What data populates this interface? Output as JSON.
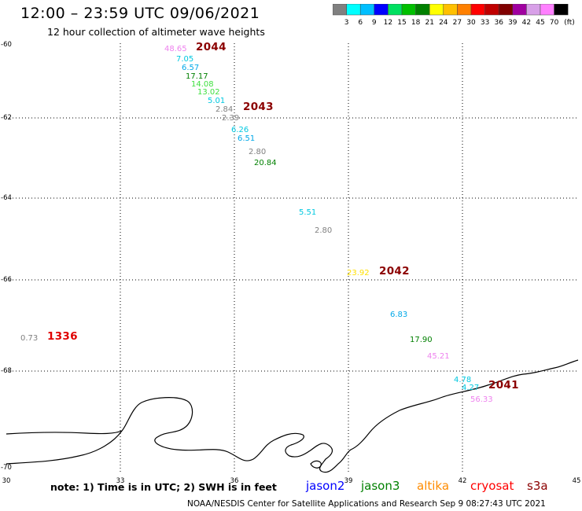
{
  "header": {
    "title": "12:00 – 23:59 UTC 09/06/2021",
    "subtitle": "12 hour collection of altimeter wave heights"
  },
  "colorbar": {
    "colors": [
      "#808080",
      "#00ffff",
      "#00bfff",
      "#0000ff",
      "#00e060",
      "#00c000",
      "#008000",
      "#ffff00",
      "#ffc000",
      "#ff8000",
      "#ff0000",
      "#c00000",
      "#800000",
      "#a000a0",
      "#d8a0e8",
      "#ff80ff",
      "#000000"
    ],
    "labels": [
      "3",
      "6",
      "9",
      "12",
      "15",
      "18",
      "21",
      "24",
      "27",
      "30",
      "33",
      "36",
      "39",
      "42",
      "45",
      "70"
    ],
    "unit": "(ft)"
  },
  "axes": {
    "x_ticks": [
      "30",
      "33",
      "36",
      "39",
      "42",
      "45"
    ],
    "y_ticks": [
      "-60",
      "-62",
      "-64",
      "-66",
      "-68",
      "-70"
    ]
  },
  "observations": [
    {
      "text": "48.65",
      "color": "#ee82ee"
    },
    {
      "text": "7.05",
      "color": "#00c8e0"
    },
    {
      "text": "6.57",
      "color": "#00a8e8"
    },
    {
      "text": "17.17",
      "color": "#008000"
    },
    {
      "text": "14.08",
      "color": "#40e040"
    },
    {
      "text": "13.02",
      "color": "#40e040"
    },
    {
      "text": "5.01",
      "color": "#00c8e0"
    },
    {
      "text": "2.84",
      "color": "#808080"
    },
    {
      "text": "2.39",
      "color": "#808080"
    },
    {
      "text": "6.26",
      "color": "#00c8e0"
    },
    {
      "text": "6.51",
      "color": "#00a8e8"
    },
    {
      "text": "2.80",
      "color": "#808080"
    },
    {
      "text": "20.84",
      "color": "#008000"
    },
    {
      "text": "5.51",
      "color": "#00c8e0"
    },
    {
      "text": "2.80",
      "color": "#808080"
    },
    {
      "text": "23.92",
      "color": "#ffe000"
    },
    {
      "text": "6.83",
      "color": "#00a8e8"
    },
    {
      "text": "17.90",
      "color": "#008000"
    },
    {
      "text": "45.21",
      "color": "#ee82ee"
    },
    {
      "text": "4.78",
      "color": "#00c8e0"
    },
    {
      "text": "4.27",
      "color": "#00c8e0"
    },
    {
      "text": "56.33",
      "color": "#ee82ee"
    },
    {
      "text": "0.73",
      "color": "#808080"
    }
  ],
  "time_labels": [
    {
      "text": "2044",
      "color": "#8b0000"
    },
    {
      "text": "2043",
      "color": "#8b0000"
    },
    {
      "text": "2042",
      "color": "#8b0000"
    },
    {
      "text": "2041",
      "color": "#8b0000"
    },
    {
      "text": "1336",
      "color": "#e00000"
    }
  ],
  "footer": {
    "note": "note: 1) Time is in UTC; 2) SWH is in feet",
    "satellites": [
      {
        "name": "jason2",
        "color": "#0000ff"
      },
      {
        "name": "jason3",
        "color": "#008000"
      },
      {
        "name": "altika",
        "color": "#ff8c00"
      },
      {
        "name": "cryosat",
        "color": "#ff0000"
      },
      {
        "name": "s3a",
        "color": "#8b0000"
      }
    ],
    "credit": "NOAA/NESDIS Center for Satellite Applications and Research     Sep  9 08:27:43 UTC 2021"
  }
}
